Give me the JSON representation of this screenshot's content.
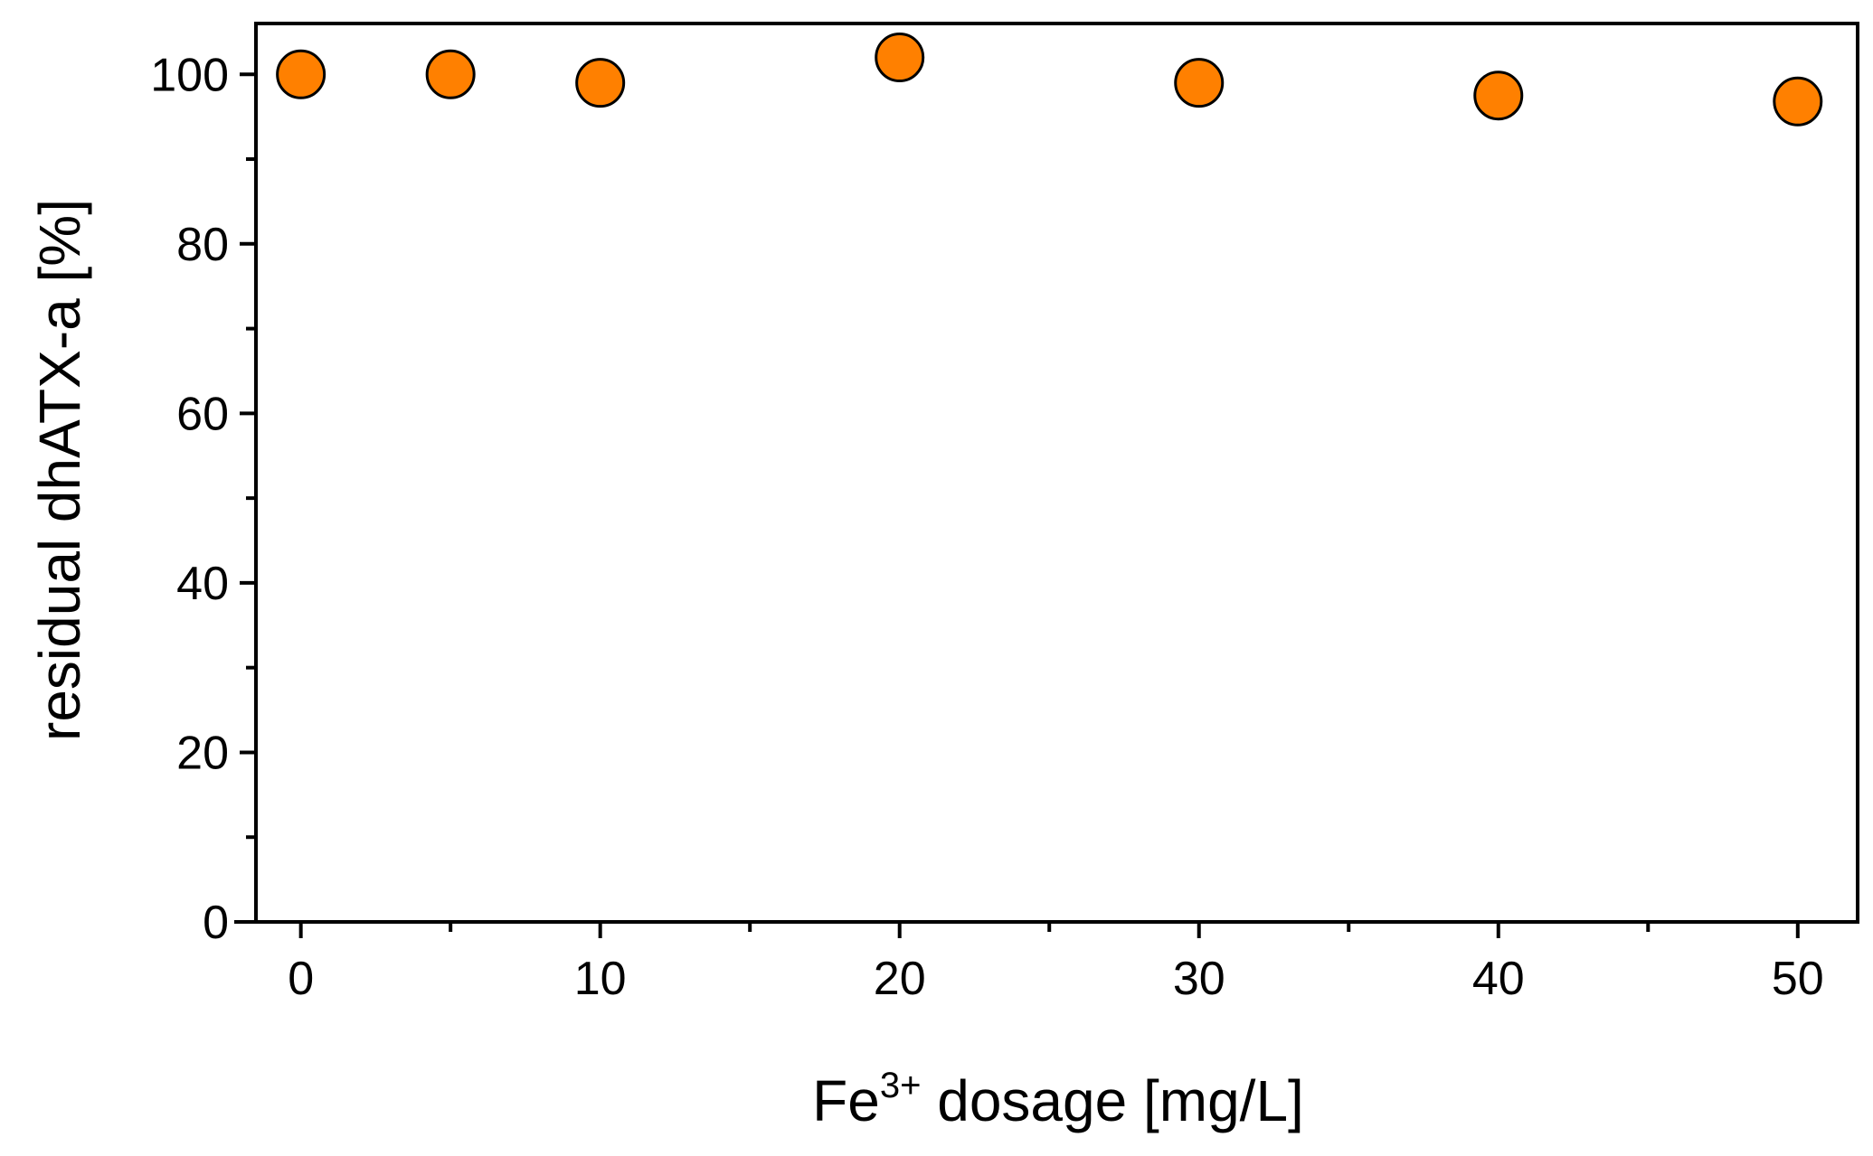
{
  "chart_data": {
    "type": "scatter",
    "title": "",
    "xlabel": {
      "prefix": "Fe",
      "superscript": "3+",
      "suffix": " dosage [mg/L]"
    },
    "ylabel": "residual dhATX-a [%]",
    "xlim": [
      -1.5,
      52
    ],
    "ylim": [
      0,
      106
    ],
    "xticks": [
      0,
      10,
      20,
      30,
      40,
      50
    ],
    "xminor_ticks": [
      5,
      15,
      25,
      35,
      45
    ],
    "yticks": [
      0,
      20,
      40,
      60,
      80,
      100
    ],
    "yminor_ticks": [
      10,
      30,
      50,
      70,
      90
    ],
    "grid": false,
    "legend": "none",
    "marker_color": "#FF8000",
    "marker_edge_color": "#000000",
    "series": [
      {
        "x": [
          0,
          5,
          10,
          20,
          30,
          40,
          50
        ],
        "y": [
          100,
          100,
          99,
          102,
          99,
          97.5,
          96.8
        ]
      }
    ]
  }
}
